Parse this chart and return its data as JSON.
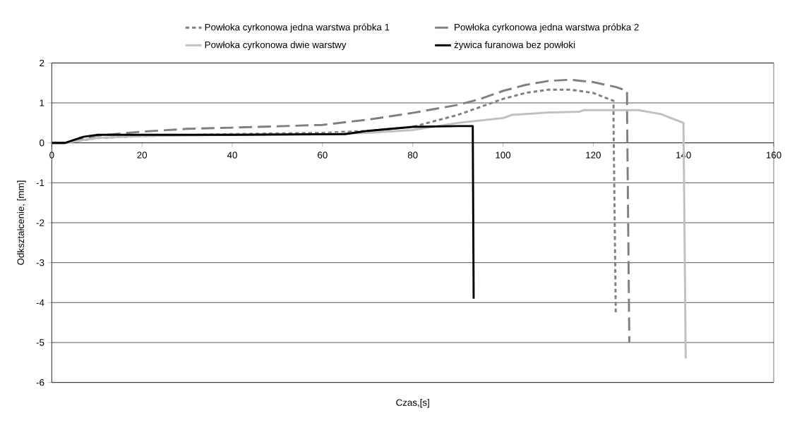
{
  "chart_data": {
    "type": "line",
    "xlabel": "Czas,[s]",
    "ylabel": "Odkształcenie, [mm]",
    "xlim": [
      0,
      160
    ],
    "ylim": [
      -6,
      2
    ],
    "xticks": [
      0,
      20,
      40,
      60,
      80,
      100,
      120,
      140,
      160
    ],
    "yticks": [
      -6,
      -5,
      -4,
      -3,
      -2,
      -1,
      0,
      1,
      2
    ],
    "grid": "y",
    "legend": "top",
    "marker": "none",
    "series": [
      {
        "name": "Powłoka cyrkonowa jedna warstwa próbka 1",
        "color": "#808080",
        "line_style": "dotted",
        "x": [
          0,
          3,
          10,
          20,
          40,
          60,
          70,
          80,
          90,
          100,
          105,
          110,
          115,
          120,
          124.5,
          124.5,
          125
        ],
        "values": [
          0,
          0,
          0.12,
          0.17,
          0.22,
          0.25,
          0.3,
          0.4,
          0.7,
          1.1,
          1.25,
          1.33,
          1.33,
          1.25,
          1.05,
          0.5,
          -4.3
        ]
      },
      {
        "name": "Powłoka cyrkonowa jedna warstwa próbka 2",
        "color": "#808080",
        "line_style": "dashed",
        "x": [
          0,
          3,
          10,
          20,
          30,
          40,
          60,
          70,
          80,
          90,
          95,
          100,
          105,
          110,
          115,
          120,
          125,
          127.5,
          127.5,
          128
        ],
        "values": [
          0,
          0,
          0.18,
          0.28,
          0.35,
          0.38,
          0.45,
          0.58,
          0.75,
          0.95,
          1.1,
          1.3,
          1.45,
          1.55,
          1.58,
          1.52,
          1.4,
          1.3,
          0.8,
          -5
        ]
      },
      {
        "name": "Powłoka cyrkonowa dwie warstwy",
        "color": "#c0c0c0",
        "line_style": "solid",
        "x": [
          0,
          3,
          10,
          20,
          40,
          60,
          70,
          80,
          90,
          100,
          102,
          110,
          117,
          118,
          130,
          135,
          140,
          140.5
        ],
        "values": [
          0,
          0,
          0.12,
          0.17,
          0.2,
          0.22,
          0.25,
          0.32,
          0.5,
          0.62,
          0.7,
          0.76,
          0.78,
          0.82,
          0.82,
          0.72,
          0.5,
          -5.4
        ]
      },
      {
        "name": "żywica furanowa bez powłoki",
        "color": "#000000",
        "line_style": "solid",
        "x": [
          0,
          3,
          7,
          10,
          20,
          40,
          65,
          70,
          80,
          90,
          93.3,
          93.5
        ],
        "values": [
          0,
          0,
          0.15,
          0.2,
          0.2,
          0.2,
          0.22,
          0.3,
          0.4,
          0.42,
          0.42,
          -3.9
        ]
      }
    ]
  }
}
